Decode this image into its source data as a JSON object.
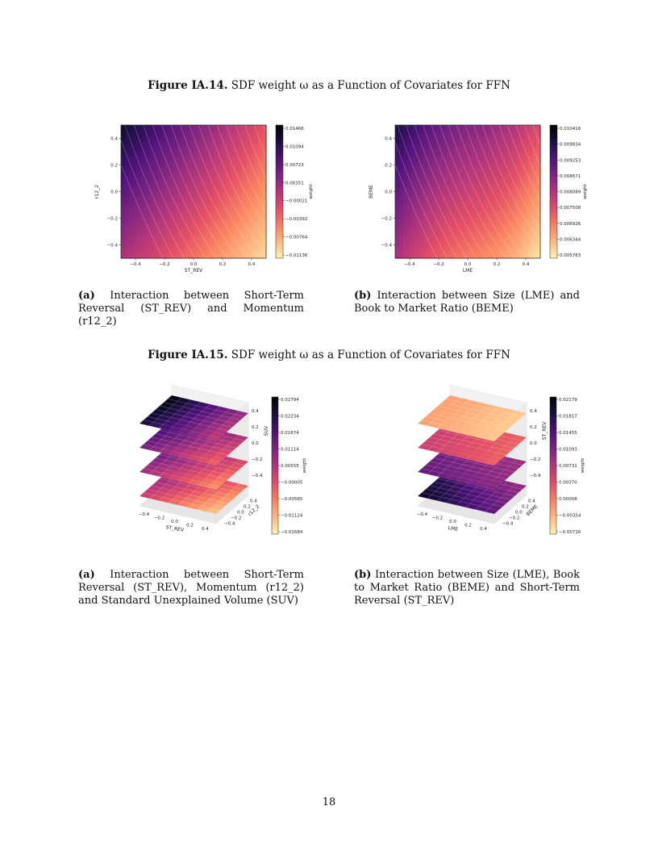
{
  "figures": [
    {
      "label": "Figure IA.14.",
      "title": "SDF weight ω as a Function of Covariates for FFN"
    },
    {
      "label": "Figure IA.15.",
      "title": "SDF weight ω as a Function of Covariates for FFN"
    }
  ],
  "captions": {
    "fig14a_tag": "(a)",
    "fig14a": "Interaction between Short-Term Reversal (ST_REV) and Momentum (r12_2)",
    "fig14b_tag": "(b)",
    "fig14b": "Interaction between Size (LME) and Book to Market Ratio (BEME)",
    "fig15a_tag": "(a)",
    "fig15a": "Interaction between Short-Term Reversal (ST_REV), Momentum (r12_2) and Standard Unexplained Volume (SUV)",
    "fig15b_tag": "(b)",
    "fig15b": "Interaction between Size (LME), Book to Market Ratio (BEME) and Short-Term Reversal (ST_REV)"
  },
  "page_number": "18",
  "chart_data": [
    {
      "type": "heatmap",
      "xlabel": "ST_REV",
      "ylabel": "r12_2",
      "colorbar_label": "weight",
      "x_ticks": [
        "−0.4",
        "−0.2",
        "0.0",
        "0.2",
        "0.4"
      ],
      "y_ticks": [
        "−0.4",
        "−0.2",
        "0.0",
        "0.2",
        "0.4"
      ],
      "colorbar_ticks": [
        "0.01466",
        "0.01094",
        "0.00723",
        "0.00351",
        "−0.00021",
        "−0.00392",
        "−0.00764",
        "−0.01136"
      ],
      "colormap": "magma"
    },
    {
      "type": "heatmap",
      "xlabel": "LME",
      "ylabel": "BEME",
      "colorbar_label": "weight",
      "x_ticks": [
        "−0.4",
        "−0.2",
        "0.0",
        "0.2",
        "0.4"
      ],
      "y_ticks": [
        "−0.4",
        "−0.2",
        "0.0",
        "0.2",
        "0.4"
      ],
      "colorbar_ticks": [
        "0.010416",
        "0.009834",
        "0.009253",
        "0.008671",
        "0.008089",
        "0.007508",
        "0.006926",
        "0.006344",
        "0.005763"
      ],
      "colormap": "magma"
    },
    {
      "type": "heatmap",
      "xlabel": "ST_REV",
      "ylabel": "r12_2",
      "zlabel": "SUV",
      "colorbar_label": "weight",
      "x_ticks": [
        "−0.4",
        "−0.2",
        "0.0",
        "0.2",
        "0.4"
      ],
      "y_ticks": [
        "−0.4",
        "−0.2",
        "0.0",
        "0.2",
        "0.4"
      ],
      "z_ticks": [
        "0.4",
        "0.2",
        "0.0",
        "−0.2",
        "−0.4"
      ],
      "colorbar_ticks": [
        "0.02794",
        "0.02234",
        "0.01674",
        "0.01114",
        "0.00555",
        "−0.00005",
        "−0.00565",
        "−0.01124",
        "−0.01684"
      ],
      "colormap": "magma"
    },
    {
      "type": "heatmap",
      "xlabel": "LME",
      "ylabel": "BEME",
      "zlabel": "ST_REV",
      "colorbar_label": "weight",
      "x_ticks": [
        "−0.4",
        "−0.2",
        "0.0",
        "0.2",
        "0.4"
      ],
      "y_ticks": [
        "−0.4",
        "−0.2",
        "0.0",
        "0.2",
        "0.4"
      ],
      "z_ticks": [
        "0.4",
        "0.2",
        "0.0",
        "−0.2",
        "−0.4"
      ],
      "colorbar_ticks": [
        "0.02179",
        "0.01817",
        "0.01455",
        "0.01093",
        "0.00731",
        "0.00370",
        "0.00008",
        "−0.00354",
        "−0.00716"
      ],
      "colormap": "magma"
    }
  ]
}
